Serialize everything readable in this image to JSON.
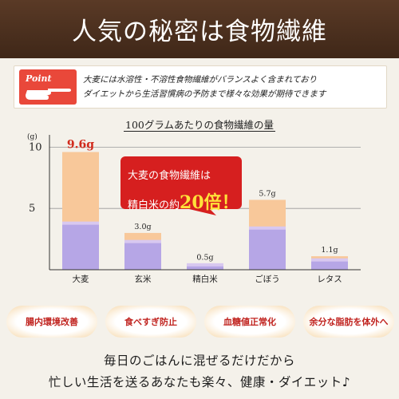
{
  "header": {
    "title": "人気の秘密は食物繊維"
  },
  "point": {
    "badge_label": "Point",
    "line1": "大麦には水溶性・不溶性食物繊維がバランスよく含まれており",
    "line2": "ダイエットから生活習慣病の予防まで様々な効果が期待できます"
  },
  "chart_data": {
    "type": "bar",
    "title": "100グラムあたりの食物繊維の量",
    "unit_label": "(g)",
    "categories": [
      "大麦",
      "玄米",
      "精白米",
      "ごぼう",
      "レタス"
    ],
    "series": [
      {
        "values": [
          3.8,
          2.3,
          0.4,
          3.4,
          0.8
        ]
      },
      {
        "values": [
          5.8,
          0.7,
          0.1,
          2.3,
          0.3
        ]
      }
    ],
    "totals": [
      9.6,
      3.0,
      0.5,
      5.7,
      1.1
    ],
    "value_labels": [
      "9.6g",
      "3.0g",
      "0.5g",
      "5.7g",
      "1.1g"
    ],
    "y_ticks": [
      5,
      10
    ],
    "ylim": [
      0,
      11
    ],
    "colors": {
      "lower": "#b6a6e6",
      "upper": "#f8c89a",
      "highlight_label": "#d12a1c"
    }
  },
  "callout": {
    "line1": "大麦の食物繊維は",
    "line2_prefix": "精白米の約",
    "line2_emphasis": "20倍！",
    "color": "#d61f1f"
  },
  "badges": [
    "腸内環境改善",
    "食べすぎ防止",
    "血糖値正常化",
    "余分な脂肪を体外へ"
  ],
  "footer": {
    "line1": "毎日のごはんに混ぜるだけだから",
    "line2": "忙しい生活を送るあなたも楽々、健康・ダイエット♪"
  }
}
